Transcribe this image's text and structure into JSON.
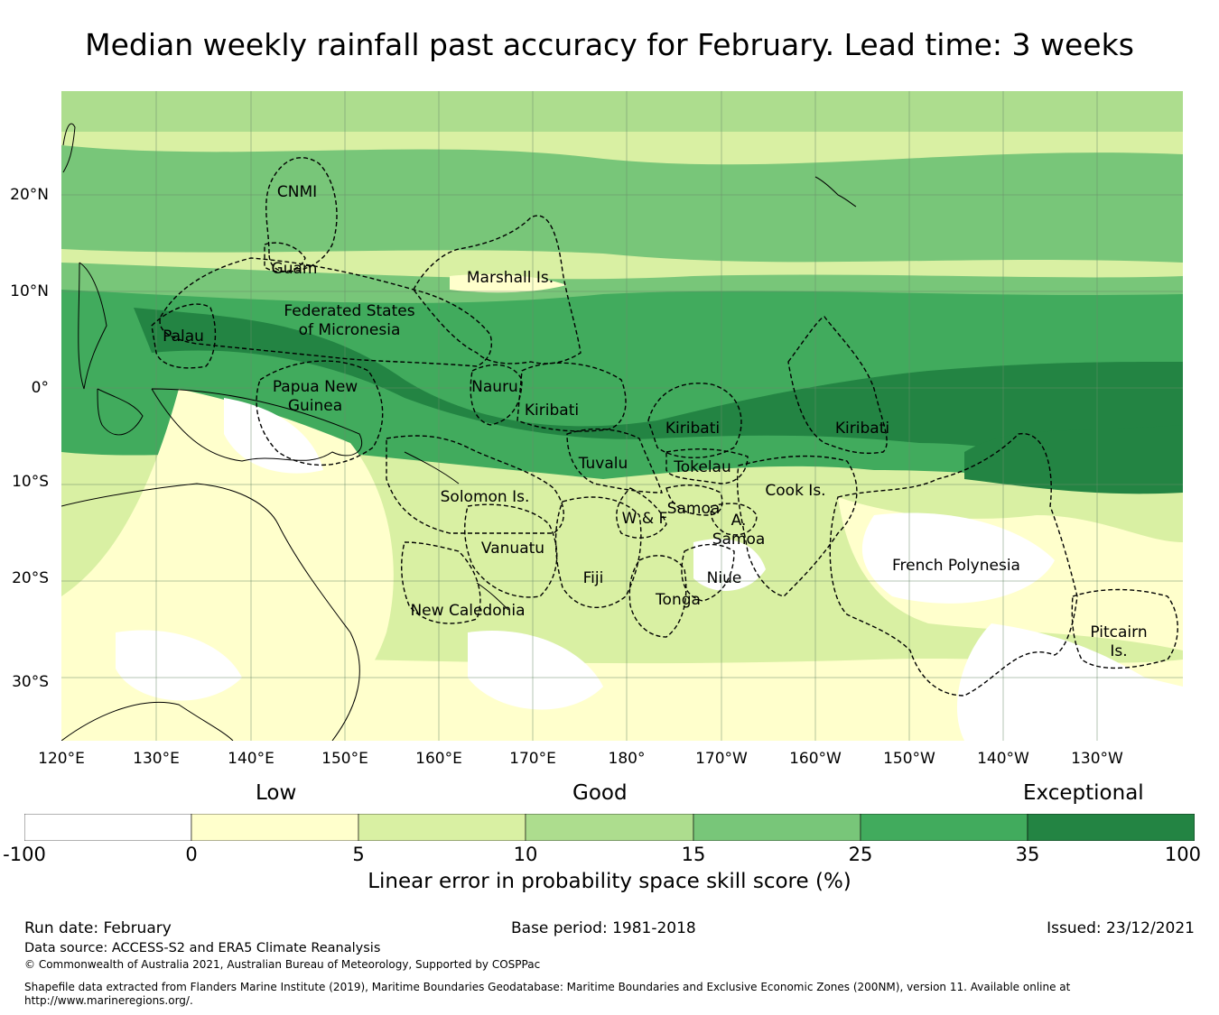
{
  "title": "Median weekly rainfall past accuracy for February. Lead time: 3 weeks",
  "colors": {
    "lt0": "#ffffff",
    "b0_5": "#ffffcc",
    "b5_10": "#d9f0a3",
    "b10_15": "#addd8e",
    "b15_25": "#78c679",
    "b25_35": "#41ab5d",
    "b35_100": "#238443"
  },
  "map": {
    "lat_labels": [
      "20°N",
      "10°N",
      "0°",
      "10°S",
      "20°S",
      "30°S"
    ],
    "lon_labels": [
      "120°E",
      "130°E",
      "140°E",
      "150°E",
      "160°E",
      "170°E",
      "180°",
      "170°W",
      "160°W",
      "150°W",
      "140°W",
      "130°W"
    ],
    "regions": {
      "cnmi": "CNMI",
      "guam": "Guam",
      "marshall": "Marshall Is.",
      "fsm_1": "Federated States",
      "fsm_2": "of Micronesia",
      "palau": "Palau",
      "png_1": "Papua New",
      "png_2": "Guinea",
      "nauru": "Nauru",
      "kiribati_w": "Kiribati",
      "kiribati_c": "Kiribati",
      "kiribati_e": "Kiribati",
      "tuvalu": "Tuvalu",
      "tokelau": "Tokelau",
      "solomon": "Solomon Is.",
      "wf": "W & F",
      "samoa": "Samoa",
      "asamoa_1": "A.",
      "asamoa_2": "Samoa",
      "cook": "Cook Is.",
      "vanuatu": "Vanuatu",
      "fiji": "Fiji",
      "niue": "Niue",
      "tonga": "Tonga",
      "french_polynesia": "French Polynesia",
      "new_caledonia": "New Caledonia",
      "pitcairn_1": "Pitcairn",
      "pitcairn_2": "Is."
    }
  },
  "colorbar": {
    "categories": [
      "Low",
      "Good",
      "Exceptional"
    ],
    "ticks": [
      "-100",
      "0",
      "5",
      "10",
      "15",
      "25",
      "35",
      "100"
    ],
    "title": "Linear error in probability space skill score (%)"
  },
  "footer": {
    "run_date": "Run date: February",
    "base_period": "Base period: 1981-2018",
    "issued": "Issued: 23/12/2021",
    "data_source": "Data source: ACCESS-S2 and ERA5 Climate Reanalysis",
    "copyright": "© Commonwealth of Australia 2021, Australian Bureau of Meteorology, Supported by COSPPac",
    "shapefile": "Shapefile data extracted from Flanders Marine Institute (2019), Maritime Boundaries Geodatabase: Maritime Boundaries and Exclusive Economic Zones (200NM), version 11. Available online at http://www.marineregions.org/."
  }
}
